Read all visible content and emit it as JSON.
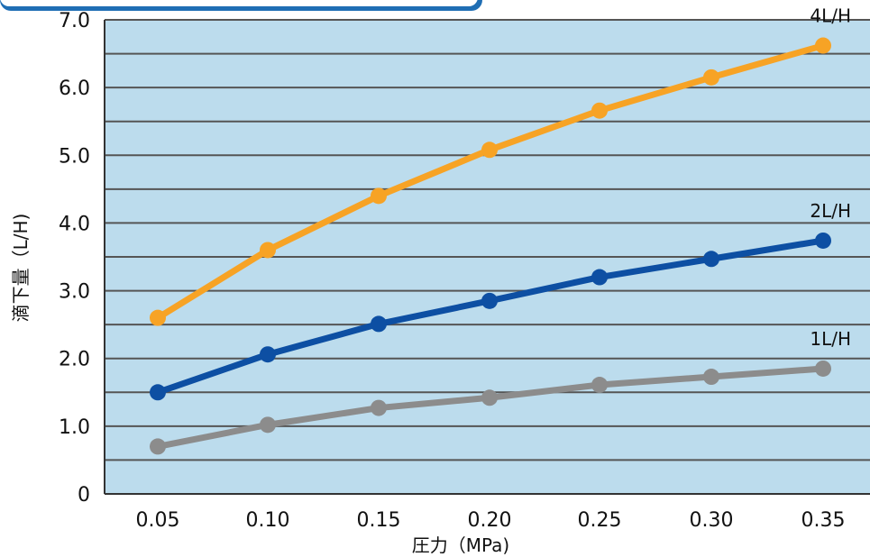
{
  "chart_data": {
    "type": "line",
    "xlabel": "圧力（MPa)",
    "ylabel": "滴下量（L/H)",
    "categories": [
      "0.05",
      "0.10",
      "0.15",
      "0.20",
      "0.25",
      "0.30",
      "0.35"
    ],
    "x": [
      0.05,
      0.1,
      0.15,
      0.2,
      0.25,
      0.3,
      0.35
    ],
    "ylim": [
      0,
      7
    ],
    "y_ticks": [
      0,
      1,
      2,
      3,
      4,
      5,
      6,
      7
    ],
    "y_tick_labels": [
      "0",
      "1.0",
      "2.0",
      "3.0",
      "4.0",
      "5.0",
      "6.0",
      "7.0"
    ],
    "grid": true,
    "series": [
      {
        "name": "4L/H",
        "color": "#f7a325",
        "values": [
          2.6,
          3.6,
          4.4,
          5.08,
          5.66,
          6.15,
          6.62
        ]
      },
      {
        "name": "2L/H",
        "color": "#0d4fa3",
        "values": [
          1.5,
          2.06,
          2.51,
          2.85,
          3.2,
          3.47,
          3.74
        ]
      },
      {
        "name": "1L/H",
        "color": "#8c8c8c",
        "values": [
          0.7,
          1.02,
          1.27,
          1.42,
          1.61,
          1.73,
          1.85
        ]
      }
    ],
    "colors": {
      "plot_background": "#bcdced",
      "grid": "#555555",
      "header_bar": "#1f6eb4"
    }
  }
}
